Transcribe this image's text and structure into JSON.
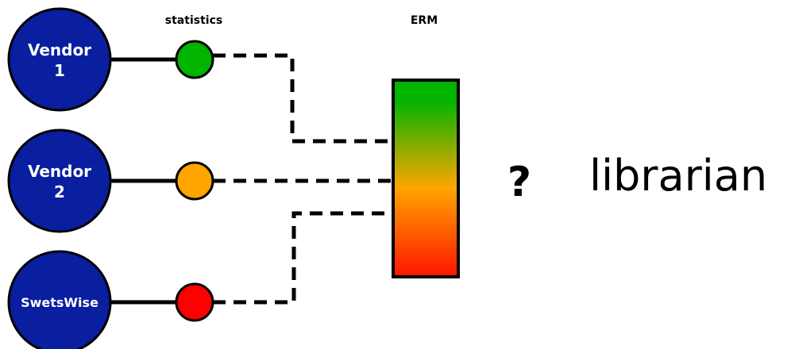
{
  "labels": {
    "statistics": "statistics",
    "erm": "ERM",
    "question": "?",
    "librarian": "librarian"
  },
  "vendors": [
    {
      "line1": "Vendor",
      "line2": "1"
    },
    {
      "line1": "Vendor",
      "line2": "2"
    },
    {
      "line1": "SwetsWise",
      "line2": ""
    }
  ],
  "stat_colors": [
    "#00b400",
    "#ffa500",
    "#ff0000"
  ],
  "colors": {
    "vendor_fill": "#0a1ea0",
    "erm_gradient": [
      "#00b400",
      "#ffa500",
      "#ff1400"
    ]
  }
}
